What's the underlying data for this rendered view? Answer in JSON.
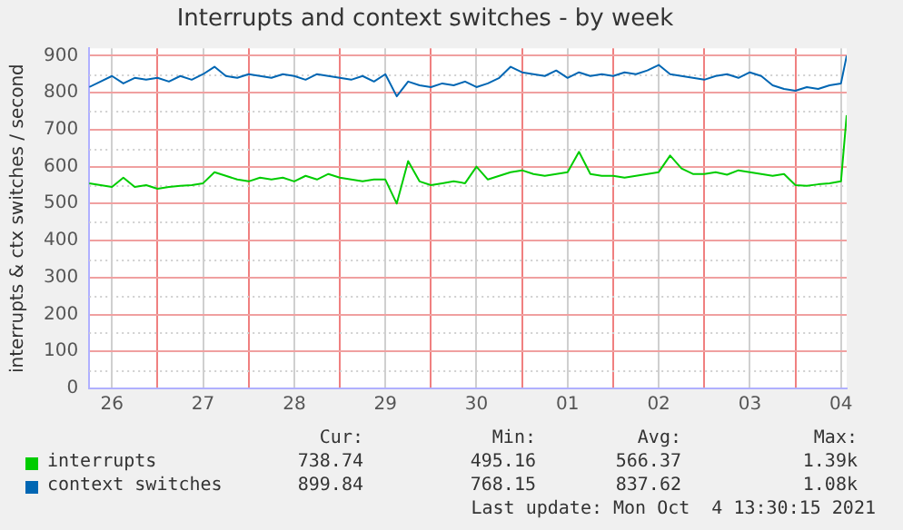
{
  "chart_data": {
    "type": "line",
    "title": "Interrupts and context switches - by week",
    "ylabel": "interrupts & ctx switches / second",
    "x": [
      "2021-09-26T06:00",
      "2021-09-26T09:00",
      "2021-09-26T12:00",
      "2021-09-26T15:00",
      "2021-09-26T18:00",
      "2021-09-26T21:00",
      "2021-09-27T00:00",
      "2021-09-27T03:00",
      "2021-09-27T06:00",
      "2021-09-27T09:00",
      "2021-09-27T12:00",
      "2021-09-27T15:00",
      "2021-09-27T18:00",
      "2021-09-27T21:00",
      "2021-09-28T00:00",
      "2021-09-28T03:00",
      "2021-09-28T06:00",
      "2021-09-28T09:00",
      "2021-09-28T12:00",
      "2021-09-28T15:00",
      "2021-09-28T18:00",
      "2021-09-28T21:00",
      "2021-09-29T00:00",
      "2021-09-29T03:00",
      "2021-09-29T06:00",
      "2021-09-29T09:00",
      "2021-09-29T12:00",
      "2021-09-29T15:00",
      "2021-09-29T18:00",
      "2021-09-29T21:00",
      "2021-09-30T00:00",
      "2021-09-30T03:00",
      "2021-09-30T06:00",
      "2021-09-30T09:00",
      "2021-09-30T12:00",
      "2021-09-30T15:00",
      "2021-09-30T18:00",
      "2021-09-30T21:00",
      "2021-10-01T00:00",
      "2021-10-01T03:00",
      "2021-10-01T06:00",
      "2021-10-01T09:00",
      "2021-10-01T12:00",
      "2021-10-01T15:00",
      "2021-10-01T18:00",
      "2021-10-01T21:00",
      "2021-10-02T00:00",
      "2021-10-02T03:00",
      "2021-10-02T06:00",
      "2021-10-02T09:00",
      "2021-10-02T12:00",
      "2021-10-02T15:00",
      "2021-10-02T18:00",
      "2021-10-02T21:00",
      "2021-10-03T00:00",
      "2021-10-03T03:00",
      "2021-10-03T06:00",
      "2021-10-03T09:00",
      "2021-10-03T12:00",
      "2021-10-03T15:00",
      "2021-10-03T18:00",
      "2021-10-03T21:00",
      "2021-10-04T00:00",
      "2021-10-04T03:00",
      "2021-10-04T06:00",
      "2021-10-04T09:00",
      "2021-10-04T12:00",
      "2021-10-04T13:30"
    ],
    "series": [
      {
        "name": "interrupts",
        "color": "#00cc00",
        "values": [
          555,
          550,
          545,
          570,
          545,
          550,
          540,
          545,
          548,
          550,
          555,
          585,
          575,
          565,
          560,
          570,
          565,
          570,
          560,
          575,
          565,
          580,
          570,
          565,
          560,
          565,
          565,
          500,
          615,
          560,
          550,
          555,
          560,
          555,
          600,
          565,
          575,
          585,
          590,
          580,
          575,
          580,
          585,
          640,
          580,
          575,
          575,
          570,
          575,
          580,
          585,
          630,
          595,
          580,
          580,
          585,
          578,
          590,
          585,
          580,
          575,
          580,
          550,
          548,
          552,
          555,
          560,
          739
        ]
      },
      {
        "name": "context switches",
        "color": "#0066b3",
        "values": [
          815,
          830,
          845,
          825,
          840,
          835,
          840,
          830,
          845,
          835,
          850,
          870,
          845,
          840,
          850,
          845,
          840,
          850,
          845,
          835,
          850,
          845,
          840,
          835,
          845,
          830,
          850,
          790,
          830,
          820,
          815,
          825,
          820,
          830,
          815,
          825,
          840,
          870,
          855,
          850,
          845,
          860,
          840,
          855,
          845,
          850,
          845,
          855,
          850,
          860,
          875,
          850,
          845,
          840,
          835,
          845,
          850,
          840,
          855,
          845,
          820,
          810,
          805,
          815,
          810,
          820,
          825,
          900
        ]
      }
    ],
    "xlim": [
      "2021-09-26T06:00",
      "2021-10-04T13:30"
    ],
    "xticks": [
      {
        "value": "2021-09-26T12:00",
        "label": "26"
      },
      {
        "value": "2021-09-27T00:00",
        "label": null
      },
      {
        "value": "2021-09-27T12:00",
        "label": "27"
      },
      {
        "value": "2021-09-28T00:00",
        "label": null
      },
      {
        "value": "2021-09-28T12:00",
        "label": "28"
      },
      {
        "value": "2021-09-29T00:00",
        "label": null
      },
      {
        "value": "2021-09-29T12:00",
        "label": "29"
      },
      {
        "value": "2021-09-30T00:00",
        "label": null
      },
      {
        "value": "2021-09-30T12:00",
        "label": "30"
      },
      {
        "value": "2021-10-01T00:00",
        "label": null
      },
      {
        "value": "2021-10-01T12:00",
        "label": "01"
      },
      {
        "value": "2021-10-02T00:00",
        "label": null
      },
      {
        "value": "2021-10-02T12:00",
        "label": "02"
      },
      {
        "value": "2021-10-03T00:00",
        "label": null
      },
      {
        "value": "2021-10-03T12:00",
        "label": "03"
      },
      {
        "value": "2021-10-04T00:00",
        "label": null
      },
      {
        "value": "2021-10-04T12:00",
        "label": "04"
      }
    ],
    "ylim": [
      0,
      920
    ],
    "yticks": [
      0,
      100,
      200,
      300,
      400,
      500,
      600,
      700,
      800,
      900
    ],
    "grid": true,
    "legend": "bottom",
    "marker": "none",
    "line_style": "solid",
    "annotations": [
      "Cur:",
      "Min:",
      "Avg:",
      "Max:",
      "738.74",
      "495.16",
      "566.37",
      "1.39k",
      "899.84",
      "768.15",
      "837.62",
      "1.08k",
      "Last update: Mon Oct  4 13:30:15 2021"
    ]
  }
}
